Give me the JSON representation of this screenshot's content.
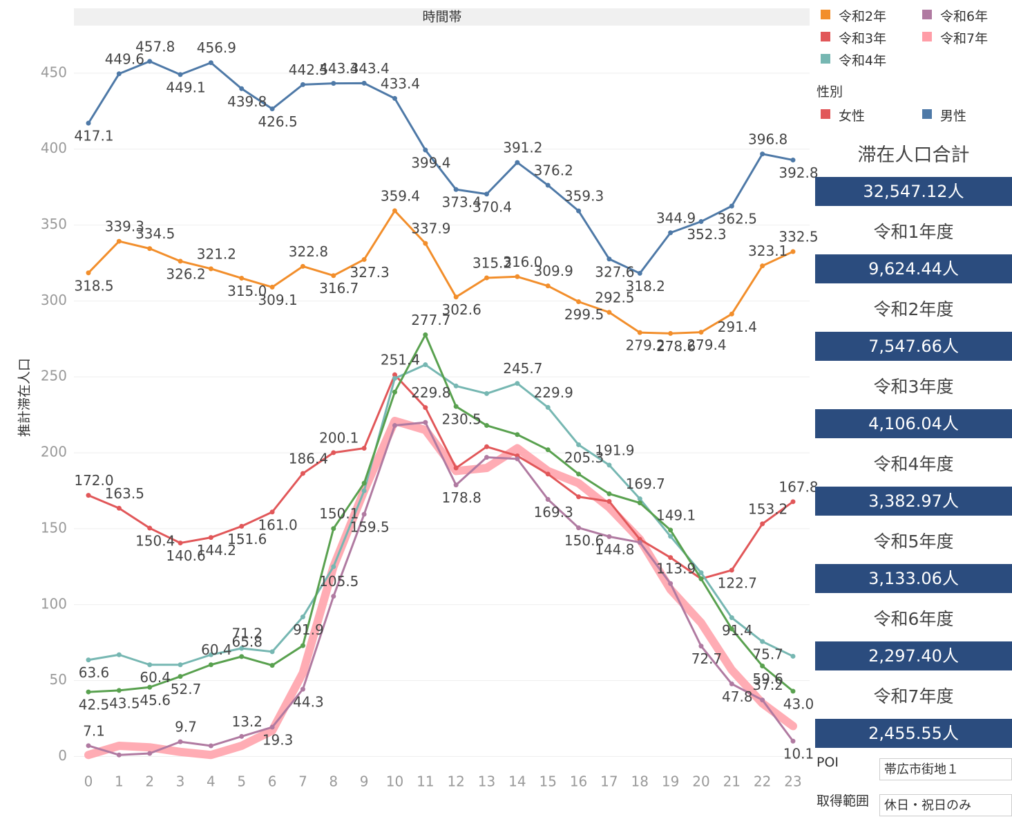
{
  "chart_data": {
    "type": "line",
    "header": "時間帯",
    "y_label": "推計滞在人口",
    "categories": [
      "0",
      "1",
      "2",
      "3",
      "4",
      "5",
      "6",
      "7",
      "8",
      "9",
      "10",
      "11",
      "12",
      "13",
      "14",
      "15",
      "16",
      "17",
      "18",
      "19",
      "20",
      "21",
      "22",
      "23"
    ],
    "ylim": [
      -8,
      480
    ],
    "yticks": [
      0,
      50,
      100,
      150,
      200,
      250,
      300,
      350,
      400,
      450
    ],
    "grid": true,
    "series": [
      {
        "name": "男性",
        "color": "#4e79a7",
        "width": 3,
        "dots": true,
        "values": [
          417.1,
          449.6,
          457.8,
          449.1,
          456.9,
          439.8,
          426.5,
          442.5,
          443.3,
          443.4,
          433.4,
          399.4,
          373.4,
          370.4,
          391.2,
          376.2,
          359.3,
          327.6,
          318.2,
          344.9,
          352.3,
          362.5,
          396.8,
          392.8
        ],
        "value_labels": [
          "417.1",
          "449.6",
          "457.8",
          "449.1",
          "456.9",
          "439.8",
          "426.5",
          "442.5",
          "443.3",
          "443.4",
          "433.4",
          "399.4",
          "373.4",
          "370.4",
          "391.2",
          "376.2",
          "359.3",
          "327.6",
          "318.2",
          "344.9",
          "352.3",
          "362.5",
          "396.8",
          "392.8"
        ]
      },
      {
        "name": "令和2年",
        "color": "#f28e2b",
        "width": 3,
        "dots": true,
        "values": [
          318.5,
          339.3,
          334.5,
          326.2,
          321.2,
          315.0,
          309.1,
          322.8,
          316.7,
          327.3,
          359.4,
          337.9,
          302.6,
          315.2,
          316.0,
          309.9,
          299.5,
          292.5,
          279.2,
          278.6,
          279.4,
          291.4,
          323.1,
          332.5
        ],
        "value_labels": [
          "318.5",
          "339.3",
          "334.5",
          "326.2",
          "321.2",
          "315.0",
          "309.1",
          "322.8",
          "316.7",
          "327.3",
          "359.4",
          "337.9",
          "302.6",
          "315.2",
          "316.0",
          "309.9",
          "299.5",
          "292.5",
          "279.2",
          "278.6",
          "279.4",
          "291.4",
          "323.1",
          "332.5"
        ]
      },
      {
        "name": "女性",
        "color": "#e15759",
        "width": 3,
        "dots": true,
        "values": [
          172.0,
          163.5,
          150.4,
          140.6,
          144.2,
          151.6,
          161.0,
          186.4,
          200.1,
          203,
          251.4,
          229.8,
          190,
          204,
          198,
          186,
          171,
          168,
          143,
          131,
          117,
          122.7,
          153.2,
          167.8
        ],
        "value_labels": [
          "172.0",
          "163.5",
          "150.4",
          "140.6",
          "144.2",
          "151.6",
          "161.0",
          "186.4",
          "200.1",
          null,
          "251.4",
          "229.8",
          null,
          null,
          null,
          null,
          null,
          null,
          null,
          null,
          null,
          "122.7",
          "153.2",
          "167.8"
        ]
      },
      {
        "name": "令和4年",
        "color": "#76b7b2",
        "width": 3,
        "dots": true,
        "values": [
          63.6,
          67,
          60.4,
          60.4,
          67,
          71.2,
          69,
          91.9,
          125,
          175,
          249,
          258,
          244,
          239,
          245.7,
          229.9,
          205.3,
          191.9,
          169.7,
          145,
          121,
          91.4,
          75.7,
          66
        ],
        "value_labels": [
          "63.6",
          null,
          "60.4",
          null,
          null,
          "71.2",
          null,
          "91.9",
          null,
          null,
          null,
          null,
          null,
          null,
          "245.7",
          "229.9",
          "205.3",
          "191.9",
          "169.7",
          null,
          null,
          "91.4",
          "75.7",
          null
        ]
      },
      {
        "color": "#59a14f",
        "width": 3,
        "dots": true,
        "values": [
          42.5,
          43.5,
          45.6,
          52.7,
          60.4,
          65.8,
          60,
          73,
          150.1,
          180,
          240,
          277.7,
          230.5,
          218,
          212,
          202,
          186,
          173,
          167,
          149.1,
          117,
          84,
          59.6,
          43.0
        ],
        "value_labels": [
          "42.5",
          "43.5",
          "45.6",
          "52.7",
          "60.4",
          "65.8",
          null,
          null,
          "150.1",
          null,
          null,
          "277.7",
          "230.5",
          null,
          null,
          null,
          null,
          null,
          null,
          "149.1",
          null,
          null,
          "59.6",
          "43.0"
        ]
      },
      {
        "name": "令和6年",
        "color": "#b07aa1",
        "width": 3,
        "dots": true,
        "values": [
          7.1,
          1,
          2,
          9.7,
          7,
          13.2,
          19.3,
          44.3,
          105.5,
          159.5,
          218,
          220,
          178.8,
          197,
          196,
          169.3,
          150.6,
          144.8,
          141,
          113.9,
          72.7,
          47.8,
          37.2,
          10.1
        ],
        "value_labels": [
          "7.1",
          null,
          null,
          "9.7",
          null,
          "13.2",
          "19.3",
          "44.3",
          "105.5",
          "159.5",
          null,
          null,
          "178.8",
          null,
          null,
          "169.3",
          "150.6",
          "144.8",
          null,
          "113.9",
          "72.7",
          "47.8",
          "37.2",
          "10.1"
        ]
      },
      {
        "name": "令和7年",
        "color": "#ff9da7",
        "width": 12,
        "dots": false,
        "values": [
          1,
          7,
          6,
          3,
          1,
          7,
          17,
          55,
          125,
          175,
          221,
          215,
          188,
          190,
          203,
          188,
          180,
          164,
          143,
          110,
          88,
          57,
          35,
          20
        ]
      }
    ]
  },
  "legend": {
    "items": [
      {
        "name": "令和2年",
        "color": "#f28e2b"
      },
      {
        "name": "令和3年",
        "color": "#e15759"
      },
      {
        "name": "令和4年",
        "color": "#76b7b2"
      },
      {
        "name": "令和6年",
        "color": "#b07aa1"
      },
      {
        "name": "令和7年",
        "color": "#ff9da7"
      }
    ],
    "gender_title": "性別",
    "gender": [
      {
        "name": "女性",
        "color": "#e15759"
      },
      {
        "name": "男性",
        "color": "#4e79a7"
      }
    ]
  },
  "summary": {
    "title": "滞在人口合計",
    "total": "32,547.12人",
    "years": [
      {
        "label": "令和1年度",
        "value": "9,624.44人"
      },
      {
        "label": "令和2年度",
        "value": "7,547.66人"
      },
      {
        "label": "令和3年度",
        "value": "4,106.04人"
      },
      {
        "label": "令和4年度",
        "value": "3,382.97人"
      },
      {
        "label": "令和5年度",
        "value": "3,133.06人"
      },
      {
        "label": "令和6年度",
        "value": "2,297.40人"
      },
      {
        "label": "令和7年度",
        "value": "2,455.55人"
      }
    ]
  },
  "filters": [
    {
      "label": "POI",
      "value": "帯広市街地１"
    },
    {
      "label": "取得範囲",
      "value": "休日・祝日のみ"
    }
  ]
}
